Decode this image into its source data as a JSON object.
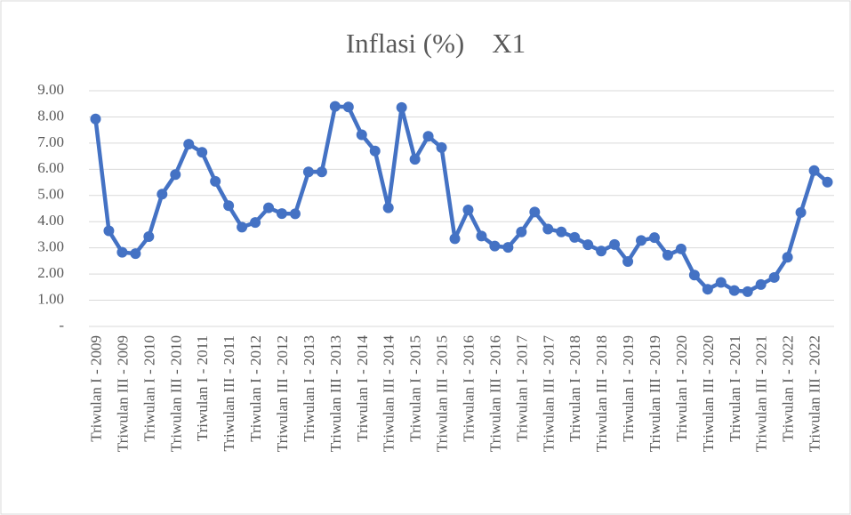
{
  "chart_data": {
    "type": "line",
    "title": "Inflasi (%)    X1",
    "categories": [
      "Triwulan I - 2009",
      null,
      "Triwulan III - 2009",
      null,
      "Triwulan I - 2010",
      null,
      "Triwulan III - 2010",
      null,
      "Triwulan I - 2011",
      null,
      "Triwulan III - 2011",
      null,
      "Triwulan I - 2012",
      null,
      "Triwulan III - 2012",
      null,
      "Triwulan I - 2013",
      null,
      "Triwulan III - 2013",
      null,
      "Triwulan I - 2014",
      null,
      "Triwulan III - 2014",
      null,
      "Triwulan I - 2015",
      null,
      "Triwulan III - 2015",
      null,
      "Triwulan I - 2016",
      null,
      "Triwulan III - 2016",
      null,
      "Triwulan I - 2017",
      null,
      "Triwulan III - 2017",
      null,
      "Triwulan I - 2018",
      null,
      "Triwulan III - 2018",
      null,
      "Triwulan I - 2019",
      null,
      "Triwulan III - 2019",
      null,
      "Triwulan I - 2020",
      null,
      "Triwulan III - 2020",
      null,
      "Triwulan I - 2021",
      null,
      "Triwulan III - 2021",
      null,
      "Triwulan I - 2022",
      null,
      "Triwulan III - 2022",
      null
    ],
    "values": [
      7.92,
      3.65,
      2.83,
      2.78,
      3.43,
      5.05,
      5.8,
      6.96,
      6.65,
      5.54,
      4.61,
      3.79,
      3.97,
      4.53,
      4.31,
      4.3,
      5.9,
      5.9,
      8.4,
      8.38,
      7.32,
      6.7,
      4.53,
      8.36,
      6.38,
      7.26,
      6.83,
      3.35,
      4.45,
      3.45,
      3.07,
      3.02,
      3.61,
      4.37,
      3.72,
      3.61,
      3.4,
      3.12,
      2.88,
      3.13,
      2.48,
      3.28,
      3.39,
      2.72,
      2.96,
      1.96,
      1.42,
      1.68,
      1.37,
      1.33,
      1.6,
      1.87,
      2.64,
      4.35,
      5.95,
      5.51
    ],
    "color": "#4472c4",
    "ylim": [
      0,
      9
    ],
    "yticks": [
      {
        "value": 0,
        "label": "-"
      },
      {
        "value": 1,
        "label": "1.00"
      },
      {
        "value": 2,
        "label": "2.00"
      },
      {
        "value": 3,
        "label": "3.00"
      },
      {
        "value": 4,
        "label": "4.00"
      },
      {
        "value": 5,
        "label": "5.00"
      },
      {
        "value": 6,
        "label": "6.00"
      },
      {
        "value": 7,
        "label": "7.00"
      },
      {
        "value": 8,
        "label": "8.00"
      },
      {
        "value": 9,
        "label": "9.00"
      }
    ],
    "grid": true
  }
}
